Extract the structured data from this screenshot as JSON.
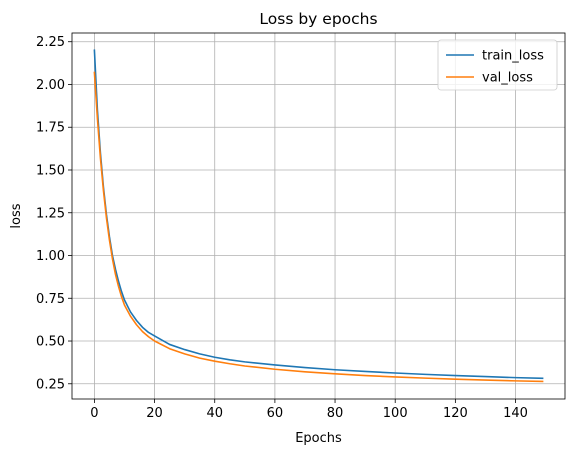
{
  "chart_data": {
    "type": "line",
    "title": "Loss by epochs",
    "xlabel": "Epochs",
    "ylabel": "loss",
    "xlim": [
      -7.45,
      156.45
    ],
    "ylim": [
      0.161,
      2.301
    ],
    "xticks": [
      0,
      20,
      40,
      60,
      80,
      100,
      120,
      140
    ],
    "yticks": [
      0.25,
      0.5,
      0.75,
      1.0,
      1.25,
      1.5,
      1.75,
      2.0,
      2.25
    ],
    "ytick_labels": [
      "0.25",
      "0.50",
      "0.75",
      "1.00",
      "1.25",
      "1.50",
      "1.75",
      "2.00",
      "2.25"
    ],
    "grid": true,
    "legend_position": "top-right",
    "series": [
      {
        "name": "train_loss",
        "color": "#1f77b4",
        "x": [
          0,
          1,
          2,
          3,
          4,
          5,
          6,
          7,
          8,
          9,
          10,
          12,
          14,
          16,
          18,
          20,
          25,
          30,
          35,
          40,
          45,
          50,
          60,
          70,
          80,
          90,
          100,
          110,
          120,
          130,
          140,
          149
        ],
        "y": [
          2.2,
          1.85,
          1.6,
          1.4,
          1.24,
          1.11,
          1.0,
          0.92,
          0.85,
          0.79,
          0.74,
          0.67,
          0.62,
          0.58,
          0.55,
          0.53,
          0.48,
          0.45,
          0.425,
          0.405,
          0.39,
          0.378,
          0.36,
          0.345,
          0.332,
          0.322,
          0.313,
          0.305,
          0.298,
          0.292,
          0.286,
          0.282
        ]
      },
      {
        "name": "val_loss",
        "color": "#ff7f0e",
        "x": [
          0,
          1,
          2,
          3,
          4,
          5,
          6,
          7,
          8,
          9,
          10,
          12,
          14,
          16,
          18,
          20,
          25,
          30,
          35,
          40,
          45,
          50,
          60,
          70,
          80,
          90,
          100,
          110,
          120,
          130,
          140,
          149
        ],
        "y": [
          2.07,
          1.8,
          1.57,
          1.38,
          1.22,
          1.09,
          0.98,
          0.89,
          0.82,
          0.76,
          0.71,
          0.645,
          0.595,
          0.555,
          0.525,
          0.5,
          0.455,
          0.425,
          0.4,
          0.382,
          0.367,
          0.354,
          0.335,
          0.32,
          0.308,
          0.298,
          0.29,
          0.283,
          0.277,
          0.272,
          0.267,
          0.264
        ]
      }
    ]
  }
}
